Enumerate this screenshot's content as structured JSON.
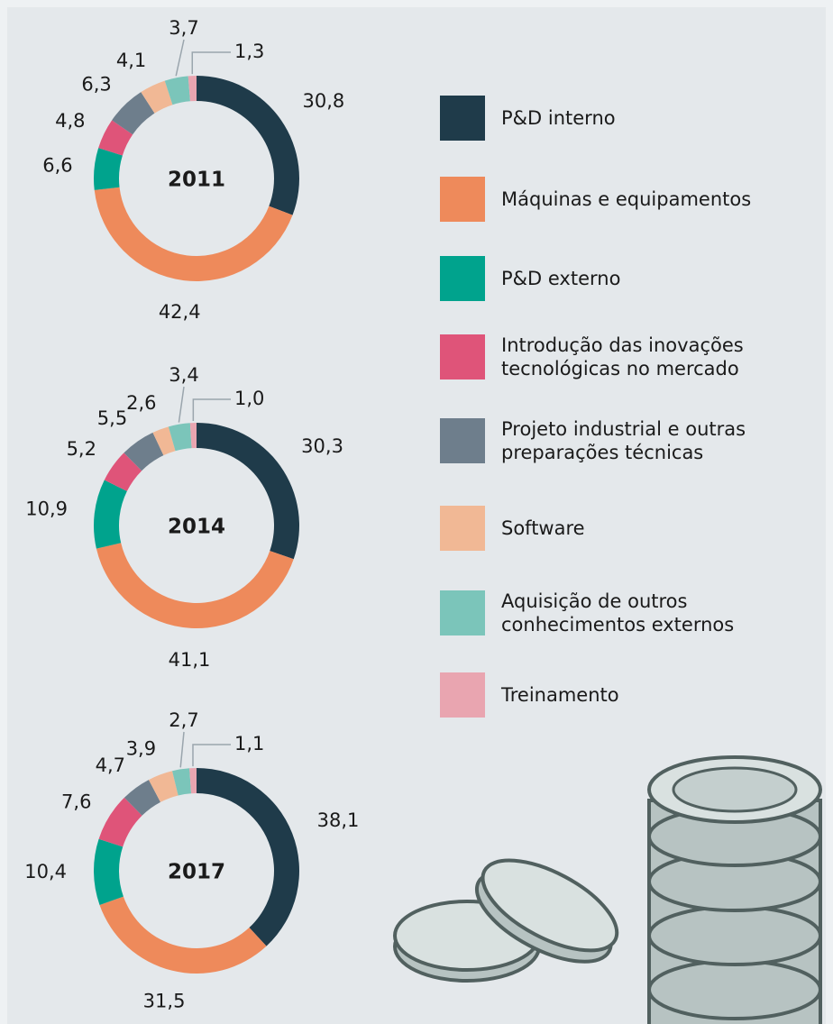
{
  "chart_data": {
    "type": "donut",
    "categories": [
      "P&D interno",
      "Máquinas e equipamentos",
      "P&D externo",
      "Introdução das inovações tecnológicas no mercado",
      "Projeto industrial e outras preparações técnicas",
      "Software",
      "Aquisição de outros conhecimentos externos",
      "Treinamento"
    ],
    "colors": [
      "#1f3b4a",
      "#ee8a5b",
      "#00a38d",
      "#df5479",
      "#6e7e8c",
      "#f1b895",
      "#7bc5ba",
      "#e9a5b0"
    ],
    "series": [
      {
        "name": "2011",
        "values": [
          30.8,
          42.4,
          6.6,
          4.8,
          6.3,
          4.1,
          3.7,
          1.3
        ],
        "value_labels": [
          "30,8",
          "42,4",
          "6,6",
          "4,8",
          "6,3",
          "4,1",
          "3,7",
          "1,3"
        ]
      },
      {
        "name": "2014",
        "values": [
          30.3,
          41.1,
          10.9,
          5.2,
          5.5,
          2.6,
          3.4,
          1.0
        ],
        "value_labels": [
          "30,3",
          "41,1",
          "10,9",
          "5,2",
          "5,5",
          "2,6",
          "3,4",
          "1,0"
        ]
      },
      {
        "name": "2017",
        "values": [
          38.1,
          31.5,
          10.4,
          7.6,
          4.7,
          3.9,
          2.7,
          1.1
        ],
        "value_labels": [
          "38,1",
          "31,5",
          "10,4",
          "7,6",
          "4,7",
          "3,9",
          "2,7",
          "1,1"
        ]
      }
    ]
  }
}
